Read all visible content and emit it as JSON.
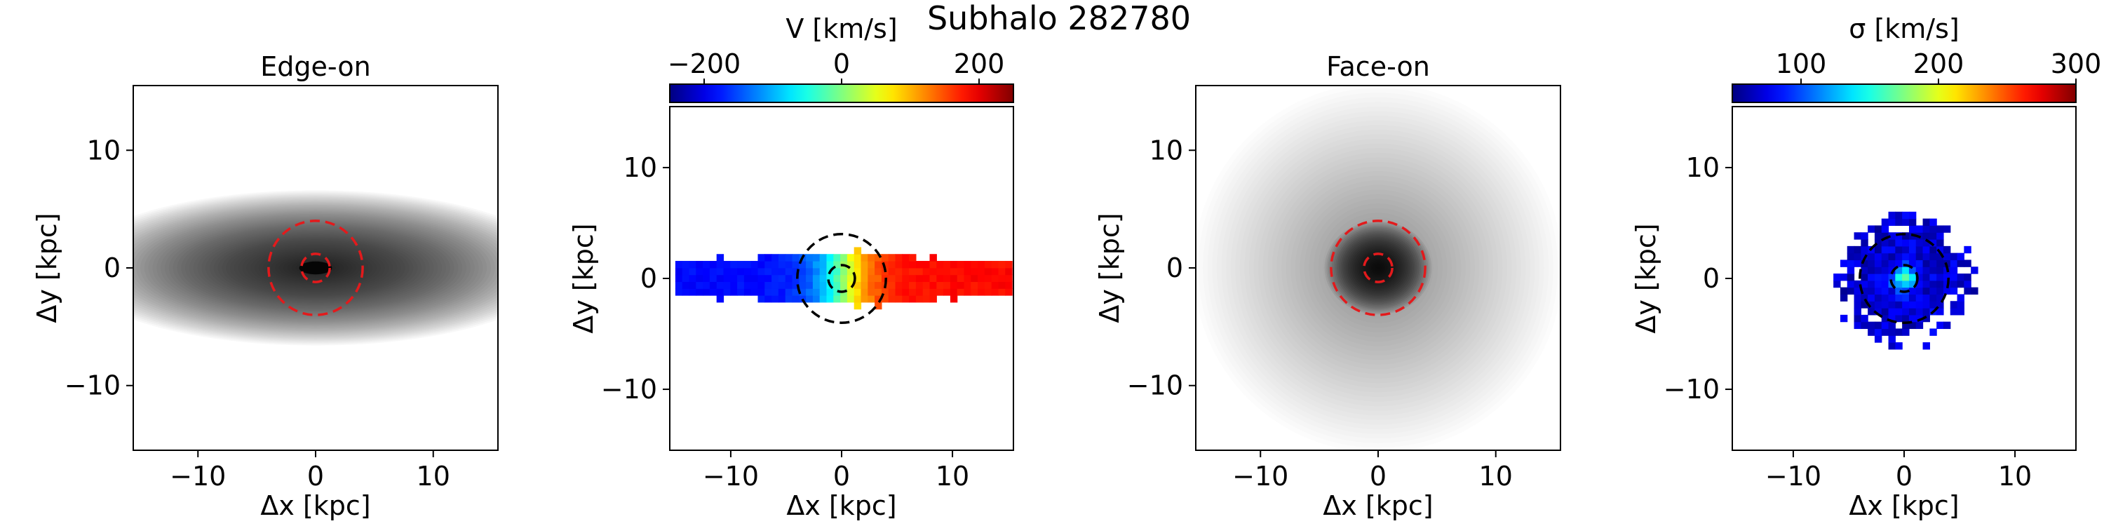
{
  "figure": {
    "title": "Subhalo 282780"
  },
  "chart_data": [
    {
      "type": "heatmap",
      "title": "Edge-on",
      "xlabel": "Δx [kpc]",
      "ylabel": "Δy [kpc]",
      "xlim": [
        -15.5,
        15.5
      ],
      "ylim": [
        -15.5,
        15.5
      ],
      "xticks": [
        -10,
        0,
        10
      ],
      "yticks": [
        -10,
        0,
        10
      ],
      "xticklabels": [
        "−10",
        "0",
        "10"
      ],
      "yticklabels": [
        "−10",
        "0",
        "10"
      ],
      "colormap": "Greys",
      "disk": {
        "scale_length_x": 8.0,
        "scale_height_y": 2.0
      },
      "circles": [
        {
          "radius": 4.0,
          "color": "#e31a1c",
          "style": "dashed"
        },
        {
          "radius": 1.2,
          "color": "#e31a1c",
          "style": "dashed"
        }
      ]
    },
    {
      "type": "heatmap",
      "title": "",
      "xlabel": "Δx [kpc]",
      "ylabel": "Δy [kpc]",
      "xlim": [
        -15.5,
        15.5
      ],
      "ylim": [
        -15.5,
        15.5
      ],
      "xticks": [
        -10,
        0,
        10
      ],
      "yticks": [
        -10,
        0,
        10
      ],
      "xticklabels": [
        "−10",
        "0",
        "10"
      ],
      "yticklabels": [
        "−10",
        "0",
        "10"
      ],
      "colormap": "jet",
      "colorbar": {
        "label": "V [km/s]",
        "range": [
          -250,
          250
        ],
        "ticks": [
          -200,
          0,
          200
        ],
        "ticklabels": [
          "−200",
          "0",
          "200"
        ]
      },
      "map": {
        "x_extent": [
          -15,
          15
        ],
        "half_height": 2.4,
        "v_max": 200,
        "v_turnover_radius": 3.0
      },
      "circles": [
        {
          "radius": 4.0,
          "color": "#000000",
          "style": "dashed"
        },
        {
          "radius": 1.2,
          "color": "#000000",
          "style": "dashed"
        }
      ]
    },
    {
      "type": "heatmap",
      "title": "Face-on",
      "xlabel": "Δx [kpc]",
      "ylabel": "Δy [kpc]",
      "xlim": [
        -15.5,
        15.5
      ],
      "ylim": [
        -15.5,
        15.5
      ],
      "xticks": [
        -10,
        0,
        10
      ],
      "yticks": [
        -10,
        0,
        10
      ],
      "xticklabels": [
        "−10",
        "0",
        "10"
      ],
      "yticklabels": [
        "−10",
        "0",
        "10"
      ],
      "colormap": "Greys",
      "disk": {
        "halo_radius": 14.0,
        "core_radius": 1.8
      },
      "circles": [
        {
          "radius": 4.0,
          "color": "#e31a1c",
          "style": "dashed"
        },
        {
          "radius": 1.2,
          "color": "#e31a1c",
          "style": "dashed"
        }
      ]
    },
    {
      "type": "heatmap",
      "title": "",
      "xlabel": "Δx [kpc]",
      "ylabel": "Δy [kpc]",
      "xlim": [
        -15.5,
        15.5
      ],
      "ylim": [
        -15.5,
        15.5
      ],
      "xticks": [
        -10,
        0,
        10
      ],
      "yticks": [
        -10,
        0,
        10
      ],
      "xticklabels": [
        "−10",
        "0",
        "10"
      ],
      "yticklabels": [
        "−10",
        "0",
        "10"
      ],
      "colormap": "jet",
      "colorbar": {
        "label": "σ [km/s]",
        "range": [
          50,
          300
        ],
        "ticks": [
          100,
          200,
          300
        ],
        "ticklabels": [
          "100",
          "200",
          "300"
        ]
      },
      "map": {
        "radius": 6.0,
        "sigma_center": 160,
        "sigma_outer": 70
      },
      "circles": [
        {
          "radius": 4.0,
          "color": "#000000",
          "style": "dashed"
        },
        {
          "radius": 1.2,
          "color": "#000000",
          "style": "dashed"
        }
      ]
    }
  ]
}
